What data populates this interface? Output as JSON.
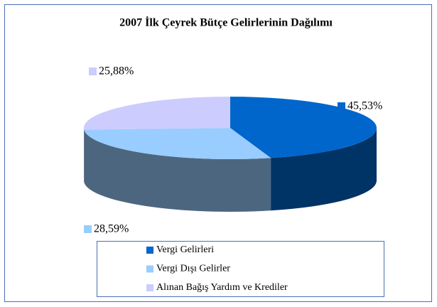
{
  "chart_data": {
    "type": "pie",
    "title": "2007 İlk Çeyrek Bütçe Gelirlerinin Dağılımı",
    "categories": [
      "Vergi Gelirleri",
      "Vergi Dışı Gelirler",
      "Alınan Bağış Yardım ve Krediler"
    ],
    "values": [
      45.53,
      28.59,
      25.88
    ],
    "value_labels": [
      "45,53%",
      "28,59%",
      "25,88%"
    ],
    "colors": [
      "#0066cc",
      "#99ccff",
      "#ccccff"
    ],
    "legend": "bottom"
  }
}
